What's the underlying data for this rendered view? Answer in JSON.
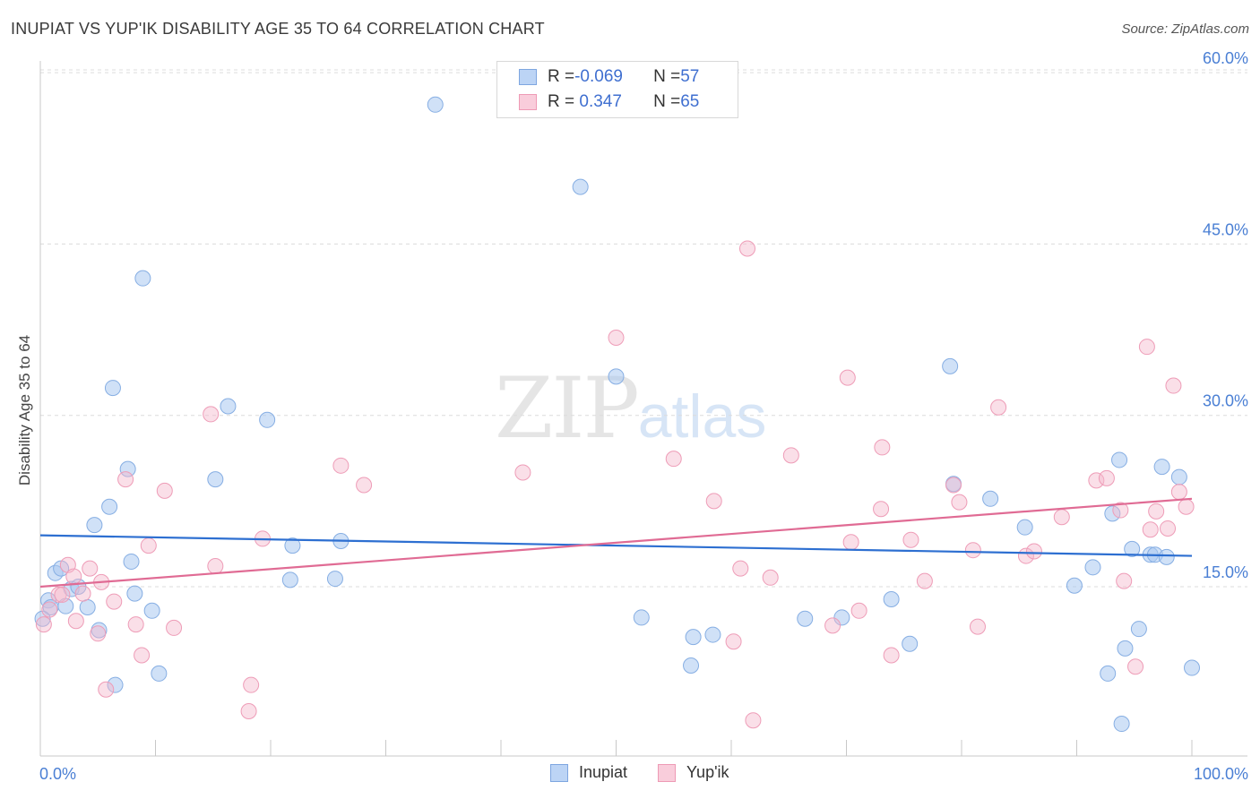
{
  "title": "INUPIAT VS YUP'IK DISABILITY AGE 35 TO 64 CORRELATION CHART",
  "source": "Source: ZipAtlas.com",
  "watermark": {
    "zip": "ZIP",
    "atlas": "atlas"
  },
  "colors": {
    "inupiat": "#a9c8f0",
    "inupiat_line": "#2d6fd1",
    "yupik": "#f5b8cb",
    "yupik_line": "#e06b94",
    "axis_text": "#4a7fd4"
  },
  "legend": {
    "rows": [
      {
        "r_label": "R = ",
        "r_value": "-0.069",
        "n_label": "N = ",
        "n_value": "57"
      },
      {
        "r_label": "R = ",
        "r_value": " 0.347",
        "n_label": "N = ",
        "n_value": "65"
      }
    ]
  },
  "bottom_legend": {
    "inupiat": "Inupiat",
    "yupik": "Yup'ik"
  },
  "chart_data": {
    "type": "scatter",
    "title": "INUPIAT VS YUP'IK DISABILITY AGE 35 TO 64 CORRELATION CHART",
    "xlabel": "",
    "ylabel": "Disability Age 35 to 64",
    "xlim": [
      0,
      100
    ],
    "ylim": [
      2,
      62
    ],
    "x_tick_labels": [
      "0.0%",
      "100.0%"
    ],
    "y_ticks": [
      15,
      30,
      45,
      60
    ],
    "y_tick_labels": [
      "15.0%",
      "30.0%",
      "45.0%",
      "60.0%"
    ],
    "grid": "horizontal dashed",
    "legend_position": "top-center",
    "series": [
      {
        "name": "Inupiat",
        "r": -0.069,
        "n": 57,
        "trend": [
          [
            0,
            19.5
          ],
          [
            100,
            17.7
          ]
        ],
        "points": [
          [
            0.7,
            13.8
          ],
          [
            0.9,
            13.2
          ],
          [
            1.3,
            16.2
          ],
          [
            1.8,
            16.6
          ],
          [
            2.2,
            13.3
          ],
          [
            2.7,
            14.8
          ],
          [
            3.3,
            15.0
          ],
          [
            4.1,
            13.2
          ],
          [
            4.7,
            20.4
          ],
          [
            5.1,
            11.2
          ],
          [
            6.0,
            22.0
          ],
          [
            6.3,
            32.4
          ],
          [
            6.5,
            6.4
          ],
          [
            7.6,
            25.3
          ],
          [
            7.9,
            17.2
          ],
          [
            8.2,
            14.4
          ],
          [
            8.9,
            42.0
          ],
          [
            9.7,
            12.9
          ],
          [
            10.3,
            7.4
          ],
          [
            15.2,
            24.4
          ],
          [
            16.3,
            30.8
          ],
          [
            19.7,
            29.6
          ],
          [
            21.7,
            15.6
          ],
          [
            21.9,
            18.6
          ],
          [
            25.6,
            15.7
          ],
          [
            26.1,
            19.0
          ],
          [
            34.3,
            57.2
          ],
          [
            46.9,
            50.0
          ],
          [
            50.0,
            33.4
          ],
          [
            52.2,
            12.3
          ],
          [
            56.5,
            8.1
          ],
          [
            56.7,
            10.6
          ],
          [
            58.4,
            10.8
          ],
          [
            66.4,
            12.2
          ],
          [
            69.6,
            12.3
          ],
          [
            73.9,
            13.9
          ],
          [
            75.5,
            10.0
          ],
          [
            79.0,
            34.3
          ],
          [
            79.3,
            24.0
          ],
          [
            82.5,
            22.7
          ],
          [
            85.5,
            20.2
          ],
          [
            89.8,
            15.1
          ],
          [
            91.4,
            16.7
          ],
          [
            92.7,
            7.4
          ],
          [
            93.1,
            21.4
          ],
          [
            93.7,
            26.1
          ],
          [
            93.9,
            3.0
          ],
          [
            94.2,
            9.6
          ],
          [
            94.8,
            18.3
          ],
          [
            95.4,
            11.3
          ],
          [
            96.4,
            17.8
          ],
          [
            96.8,
            17.8
          ],
          [
            97.4,
            25.5
          ],
          [
            97.8,
            17.6
          ],
          [
            98.9,
            24.6
          ],
          [
            100.0,
            7.9
          ],
          [
            0.2,
            12.2
          ]
        ]
      },
      {
        "name": "Yup'ik",
        "r": 0.347,
        "n": 65,
        "trend": [
          [
            0,
            15.0
          ],
          [
            100,
            22.7
          ]
        ],
        "points": [
          [
            0.3,
            11.7
          ],
          [
            0.8,
            13.0
          ],
          [
            1.6,
            14.3
          ],
          [
            1.9,
            14.3
          ],
          [
            2.4,
            16.9
          ],
          [
            2.9,
            15.9
          ],
          [
            3.1,
            12.0
          ],
          [
            3.7,
            14.4
          ],
          [
            4.3,
            16.6
          ],
          [
            5.0,
            10.9
          ],
          [
            5.3,
            15.4
          ],
          [
            5.7,
            6.0
          ],
          [
            6.4,
            13.7
          ],
          [
            7.4,
            24.4
          ],
          [
            8.3,
            11.7
          ],
          [
            8.8,
            9.0
          ],
          [
            9.4,
            18.6
          ],
          [
            10.8,
            23.4
          ],
          [
            11.6,
            11.4
          ],
          [
            14.8,
            30.1
          ],
          [
            15.2,
            16.8
          ],
          [
            18.1,
            4.1
          ],
          [
            18.3,
            6.4
          ],
          [
            19.3,
            19.2
          ],
          [
            26.1,
            25.6
          ],
          [
            28.1,
            23.9
          ],
          [
            41.9,
            25.0
          ],
          [
            50.0,
            36.8
          ],
          [
            55.0,
            26.2
          ],
          [
            58.5,
            22.5
          ],
          [
            60.2,
            10.2
          ],
          [
            60.8,
            16.6
          ],
          [
            61.4,
            44.6
          ],
          [
            61.9,
            3.3
          ],
          [
            63.4,
            15.8
          ],
          [
            65.2,
            26.5
          ],
          [
            68.8,
            11.6
          ],
          [
            70.1,
            33.3
          ],
          [
            70.4,
            18.9
          ],
          [
            71.1,
            12.9
          ],
          [
            73.0,
            21.8
          ],
          [
            73.1,
            27.2
          ],
          [
            73.9,
            9.0
          ],
          [
            75.6,
            19.1
          ],
          [
            76.8,
            15.5
          ],
          [
            79.3,
            23.9
          ],
          [
            79.8,
            22.4
          ],
          [
            81.0,
            18.2
          ],
          [
            81.4,
            11.5
          ],
          [
            83.2,
            30.7
          ],
          [
            85.6,
            17.7
          ],
          [
            86.3,
            18.1
          ],
          [
            88.7,
            21.1
          ],
          [
            91.7,
            24.3
          ],
          [
            92.6,
            24.5
          ],
          [
            93.8,
            21.7
          ],
          [
            94.1,
            15.5
          ],
          [
            95.1,
            8.0
          ],
          [
            96.1,
            36.0
          ],
          [
            96.4,
            20.0
          ],
          [
            96.9,
            21.6
          ],
          [
            97.9,
            20.1
          ],
          [
            98.4,
            32.6
          ],
          [
            98.9,
            23.3
          ],
          [
            99.5,
            22.0
          ]
        ]
      }
    ]
  }
}
